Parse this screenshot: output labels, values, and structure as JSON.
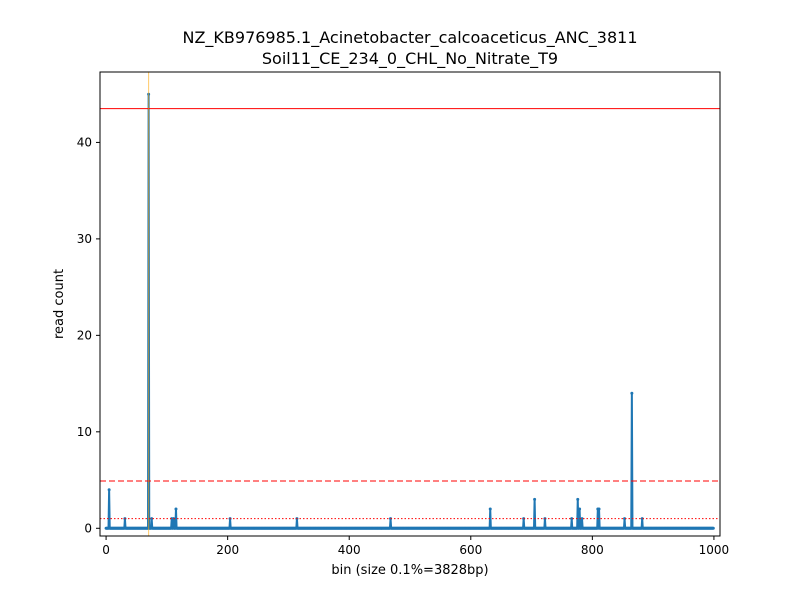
{
  "chart_data": {
    "type": "line",
    "title_lines": [
      "NZ_KB976985.1_Acinetobacter_calcoaceticus_ANC_3811",
      "Soil11_CE_234_0_CHL_No_Nitrate_T9"
    ],
    "xlabel": "bin (size 0.1%=3828bp)",
    "ylabel": "read count",
    "xlim": [
      -10,
      1010
    ],
    "ylim": [
      -0.8,
      47.3
    ],
    "x_ticks": [
      0,
      200,
      400,
      600,
      800,
      1000
    ],
    "y_ticks": [
      0,
      10,
      20,
      30,
      40
    ],
    "grid": false,
    "series": [
      {
        "color": "#1f77b4",
        "n_bins": 1000,
        "default_value": 0,
        "nonzero": [
          {
            "x": 5,
            "y": 4
          },
          {
            "x": 31,
            "y": 1
          },
          {
            "x": 70,
            "y": 45
          },
          {
            "x": 75,
            "y": 1
          },
          {
            "x": 108,
            "y": 1
          },
          {
            "x": 111,
            "y": 1
          },
          {
            "x": 115,
            "y": 2
          },
          {
            "x": 204,
            "y": 1
          },
          {
            "x": 314,
            "y": 1
          },
          {
            "x": 468,
            "y": 1
          },
          {
            "x": 632,
            "y": 2
          },
          {
            "x": 687,
            "y": 1
          },
          {
            "x": 705,
            "y": 3
          },
          {
            "x": 722,
            "y": 1
          },
          {
            "x": 766,
            "y": 1
          },
          {
            "x": 776,
            "y": 3
          },
          {
            "x": 779,
            "y": 2
          },
          {
            "x": 783,
            "y": 1
          },
          {
            "x": 809,
            "y": 2
          },
          {
            "x": 811,
            "y": 2
          },
          {
            "x": 853,
            "y": 1
          },
          {
            "x": 865,
            "y": 14
          },
          {
            "x": 882,
            "y": 1
          }
        ]
      }
    ],
    "reference_lines": [
      {
        "orientation": "horizontal",
        "y": 43.5,
        "color": "#ff0000",
        "style": "solid"
      },
      {
        "orientation": "horizontal",
        "y": 4.9,
        "color": "#ff0000",
        "style": "dashed"
      },
      {
        "orientation": "horizontal",
        "y": 1.0,
        "color": "#ff0000",
        "style": "dotted"
      },
      {
        "orientation": "vertical",
        "x": 70,
        "color": "#ffa500",
        "style": "solid"
      }
    ]
  }
}
